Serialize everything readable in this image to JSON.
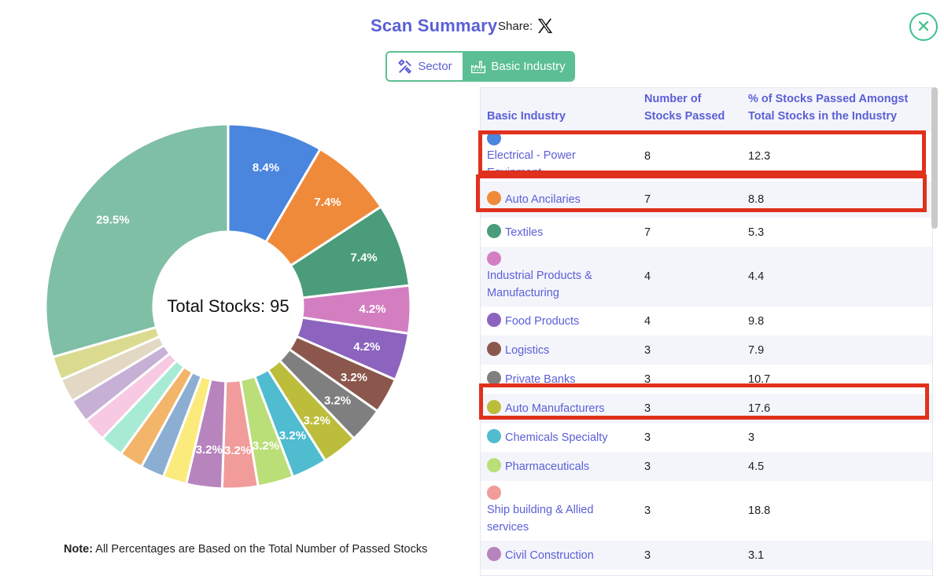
{
  "header": {
    "title": "Scan Summary",
    "share_label": "Share:"
  },
  "toggle": {
    "sector_label": "Sector",
    "basic_label": "Basic Industry"
  },
  "note": {
    "bold": "Note:",
    "text": " All Percentages are Based on the Total Number of Passed Stocks"
  },
  "table": {
    "headers": {
      "industry": "Basic Industry",
      "count": "Number of Stocks Passed",
      "pct": "% of Stocks Passed Amongst Total Stocks in the Industry"
    },
    "rows": [
      {
        "name": "Electrical - Power Equipment",
        "count": "8",
        "pct": "12.3",
        "color": "#4a85de"
      },
      {
        "name": "Auto Ancilaries",
        "count": "7",
        "pct": "8.8",
        "color": "#f08a3b"
      },
      {
        "name": "Textiles",
        "count": "7",
        "pct": "5.3",
        "color": "#4a9c7a"
      },
      {
        "name": "Industrial Products & Manufacturing",
        "count": "4",
        "pct": "4.4",
        "color": "#d47ec2"
      },
      {
        "name": "Food Products",
        "count": "4",
        "pct": "9.8",
        "color": "#8c63be"
      },
      {
        "name": "Logistics",
        "count": "3",
        "pct": "7.9",
        "color": "#8b574c"
      },
      {
        "name": "Private Banks",
        "count": "3",
        "pct": "10.7",
        "color": "#7f7f7f"
      },
      {
        "name": "Auto Manufacturers",
        "count": "3",
        "pct": "17.6",
        "color": "#bdbd3c"
      },
      {
        "name": "Chemicals Specialty",
        "count": "3",
        "pct": "3",
        "color": "#4fbcd0"
      },
      {
        "name": "Pharmaceuticals",
        "count": "3",
        "pct": "4.5",
        "color": "#bade78"
      },
      {
        "name": "Ship building & Allied services",
        "count": "3",
        "pct": "18.8",
        "color": "#f19b9b"
      },
      {
        "name": "Civil Construction",
        "count": "3",
        "pct": "3.1",
        "color": "#b784be"
      }
    ]
  },
  "chart_data": {
    "type": "pie",
    "center_label": "Total Stocks: 95",
    "total": 95,
    "slices": [
      {
        "value": 8,
        "label": "8.4%",
        "color": "#4a85de"
      },
      {
        "value": 7,
        "label": "7.4%",
        "color": "#f08a3b"
      },
      {
        "value": 7,
        "label": "7.4%",
        "color": "#4a9c7a"
      },
      {
        "value": 4,
        "label": "4.2%",
        "color": "#d47ec2"
      },
      {
        "value": 4,
        "label": "4.2%",
        "color": "#8c63be"
      },
      {
        "value": 3,
        "label": "3.2%",
        "color": "#8b574c"
      },
      {
        "value": 3,
        "label": "3.2%",
        "color": "#7f7f7f"
      },
      {
        "value": 3,
        "label": "3.2%",
        "color": "#bdbd3c"
      },
      {
        "value": 3,
        "label": "3.2%",
        "color": "#4fbcd0"
      },
      {
        "value": 3,
        "label": "3.2%",
        "color": "#bade78"
      },
      {
        "value": 3,
        "label": "3.2%",
        "color": "#f19b9b"
      },
      {
        "value": 3,
        "label": "3.2%",
        "color": "#b784be"
      },
      {
        "value": 2,
        "label": "",
        "color": "#fbeb7c"
      },
      {
        "value": 2,
        "label": "",
        "color": "#8caed3"
      },
      {
        "value": 2,
        "label": "",
        "color": "#f2b56a"
      },
      {
        "value": 2,
        "label": "",
        "color": "#a8ebd5"
      },
      {
        "value": 2,
        "label": "",
        "color": "#f7c9e3"
      },
      {
        "value": 2,
        "label": "",
        "color": "#c6b0d6"
      },
      {
        "value": 2,
        "label": "",
        "color": "#e3d8c3"
      },
      {
        "value": 2,
        "label": "",
        "color": "#dadb8f"
      },
      {
        "value": 28,
        "label": "29.5%",
        "color": "#7fbfa6"
      }
    ]
  }
}
